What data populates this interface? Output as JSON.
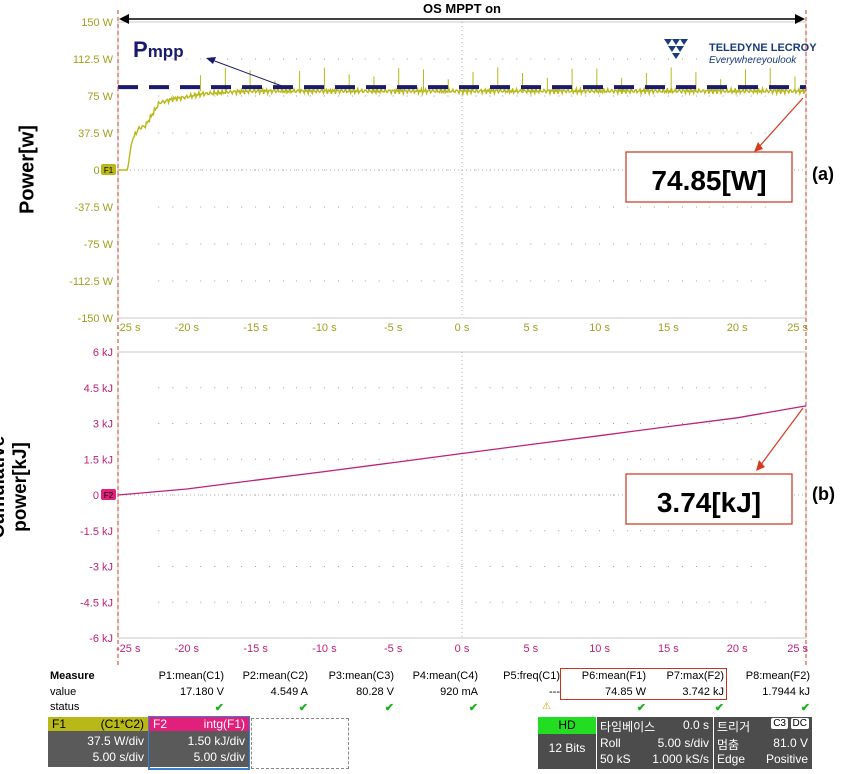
{
  "title": "OS MPPT on",
  "annotation_pmpp": "Pmpp",
  "annotation_pmpp_sub": "mpp",
  "annotation_pmpp_main": "P",
  "label_a": "(a)",
  "label_b": "(b)",
  "callout_a": "74.85[W]",
  "callout_b": "3.74[kJ]",
  "logo": {
    "brand": "TELEDYNE LECROY",
    "tagline": "Everywhereyoulook"
  },
  "chart_data": [
    {
      "type": "line",
      "title": "",
      "ylabel": "Power[w]",
      "xlabel": "",
      "xlim": [
        -25,
        25
      ],
      "ylim": [
        -150,
        150
      ],
      "xticks": [
        "-25 s",
        "-20 s",
        "-15 s",
        "-10 s",
        "-5 s",
        "0 s",
        "5 s",
        "10 s",
        "15 s",
        "20 s",
        "25 s"
      ],
      "yticks": [
        "150 W",
        "112.5 W",
        "75 W",
        "37.5 W",
        "0 W",
        "-37.5 W",
        "-75 W",
        "-112.5 W",
        "-150 W"
      ],
      "marker": "F1",
      "series": [
        {
          "name": "F1",
          "color": "#b8b818",
          "x": [
            -25,
            -24.3,
            -24,
            -23.5,
            -23,
            -22,
            -21.5,
            -21,
            -20,
            -19,
            -18,
            -17,
            -15,
            -10,
            -5,
            0,
            5,
            10,
            15,
            20,
            25
          ],
          "y": [
            0,
            0,
            30,
            42,
            45,
            68,
            70,
            72,
            74,
            77,
            78,
            79,
            80,
            80,
            80,
            80,
            80,
            80,
            80,
            80,
            80
          ]
        },
        {
          "name": "Pmpp",
          "color": "#1a1a6e",
          "x": [
            -25,
            25
          ],
          "y": [
            84,
            84
          ]
        }
      ]
    },
    {
      "type": "line",
      "title": "",
      "ylabel": "Cumulative power[kJ]",
      "xlabel": "",
      "xlim": [
        -25,
        25
      ],
      "ylim": [
        -6,
        6
      ],
      "xticks": [
        "-25 s",
        "-20 s",
        "-15 s",
        "-10 s",
        "-5 s",
        "0 s",
        "5 s",
        "10 s",
        "15 s",
        "20 s",
        "25 s"
      ],
      "yticks": [
        "6 kJ",
        "4.5 kJ",
        "3 kJ",
        "1.5 kJ",
        "0 kJ",
        "-1.5 kJ",
        "-3 kJ",
        "-4.5 kJ",
        "-6 kJ"
      ],
      "marker": "F2",
      "series": [
        {
          "name": "F2",
          "color": "#c0207a",
          "x": [
            -25,
            -20,
            -15,
            -10,
            -5,
            0,
            5,
            10,
            15,
            20,
            25
          ],
          "y": [
            0,
            0.25,
            0.62,
            0.98,
            1.36,
            1.74,
            2.12,
            2.49,
            2.87,
            3.24,
            3.74
          ]
        }
      ]
    }
  ],
  "measure": {
    "header_label": "Measure",
    "value_label": "value",
    "status_label": "status",
    "params": [
      "P1:mean(C1)",
      "P2:mean(C2)",
      "P3:mean(C3)",
      "P4:mean(C4)",
      "P5:freq(C1)",
      "P6:mean(F1)",
      "P7:max(F2)",
      "P8:mean(F2)"
    ],
    "values": [
      "17.180 V",
      "4.549 A",
      "80.28 V",
      "920 mA",
      "---",
      "74.85 W",
      "3.742 kJ",
      "1.7944 kJ"
    ],
    "status": [
      "ok",
      "ok",
      "ok",
      "ok",
      "warn",
      "ok",
      "ok",
      "ok"
    ]
  },
  "f1": {
    "tag": "F1",
    "expr": "(C1*C2)",
    "vdiv": "37.5 W/div",
    "tdiv": "5.00 s/div",
    "color": "#b8b818"
  },
  "f2": {
    "tag": "F2",
    "expr": "intg(F1)",
    "vdiv": "1.50 kJ/div",
    "tdiv": "5.00 s/div",
    "color": "#e0207a"
  },
  "hd": {
    "badge": "HD",
    "bits": "12 Bits"
  },
  "timebase": {
    "title": "타임베이스",
    "offset": "0.0 s",
    "mode": "Roll",
    "tdiv": "5.00 s/div",
    "samples": "50 kS",
    "rate": "1.000 kS/s"
  },
  "trigger": {
    "title": "트리거",
    "ch": "C3",
    "coupling": "DC",
    "state": "멈춤",
    "level": "81.0 V",
    "type": "Edge",
    "slope": "Positive"
  }
}
